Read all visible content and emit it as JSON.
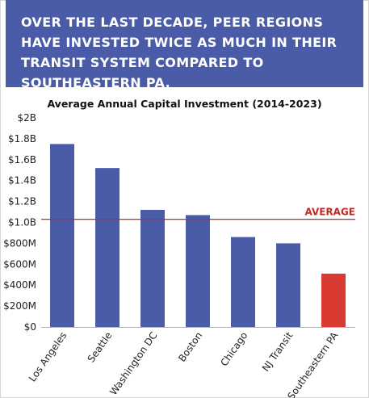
{
  "headline": "OVER THE LAST DECADE, PEER REGIONS HAVE INVESTED TWICE AS MUCH IN THEIR TRANSIT SYSTEM COMPARED TO SOUTHEASTERN PA.",
  "colors": {
    "banner": "#4a5ba7",
    "bar": "#4a5ba7",
    "highlight": "#d93b33",
    "average_line": "#c62828"
  },
  "chart_data": {
    "type": "bar",
    "title": "Average Annual Capital Investment (2014-2023)",
    "xlabel": "",
    "ylabel": "",
    "ylim": [
      0,
      2000000000
    ],
    "yticks": [
      0,
      200000000,
      400000000,
      600000000,
      800000000,
      1000000000,
      1200000000,
      1400000000,
      1600000000,
      1800000000,
      2000000000
    ],
    "ytick_labels": [
      "$0",
      "$200M",
      "$400M",
      "$600M",
      "$800M",
      "$1.0B",
      "$1.2B",
      "$1.4B",
      "$1.6B",
      "$1.8B",
      "$2B"
    ],
    "categories": [
      "Los Angeles",
      "Seattle",
      "Washington DC",
      "Boston",
      "Chicago",
      "NJ Transit",
      "Southeastern PA"
    ],
    "values": [
      1750000000,
      1520000000,
      1120000000,
      1070000000,
      860000000,
      800000000,
      510000000
    ],
    "highlight_category": "Southeastern PA",
    "average": {
      "label": "AVERAGE",
      "value": 1030000000
    },
    "grid": false,
    "legend": "none"
  }
}
